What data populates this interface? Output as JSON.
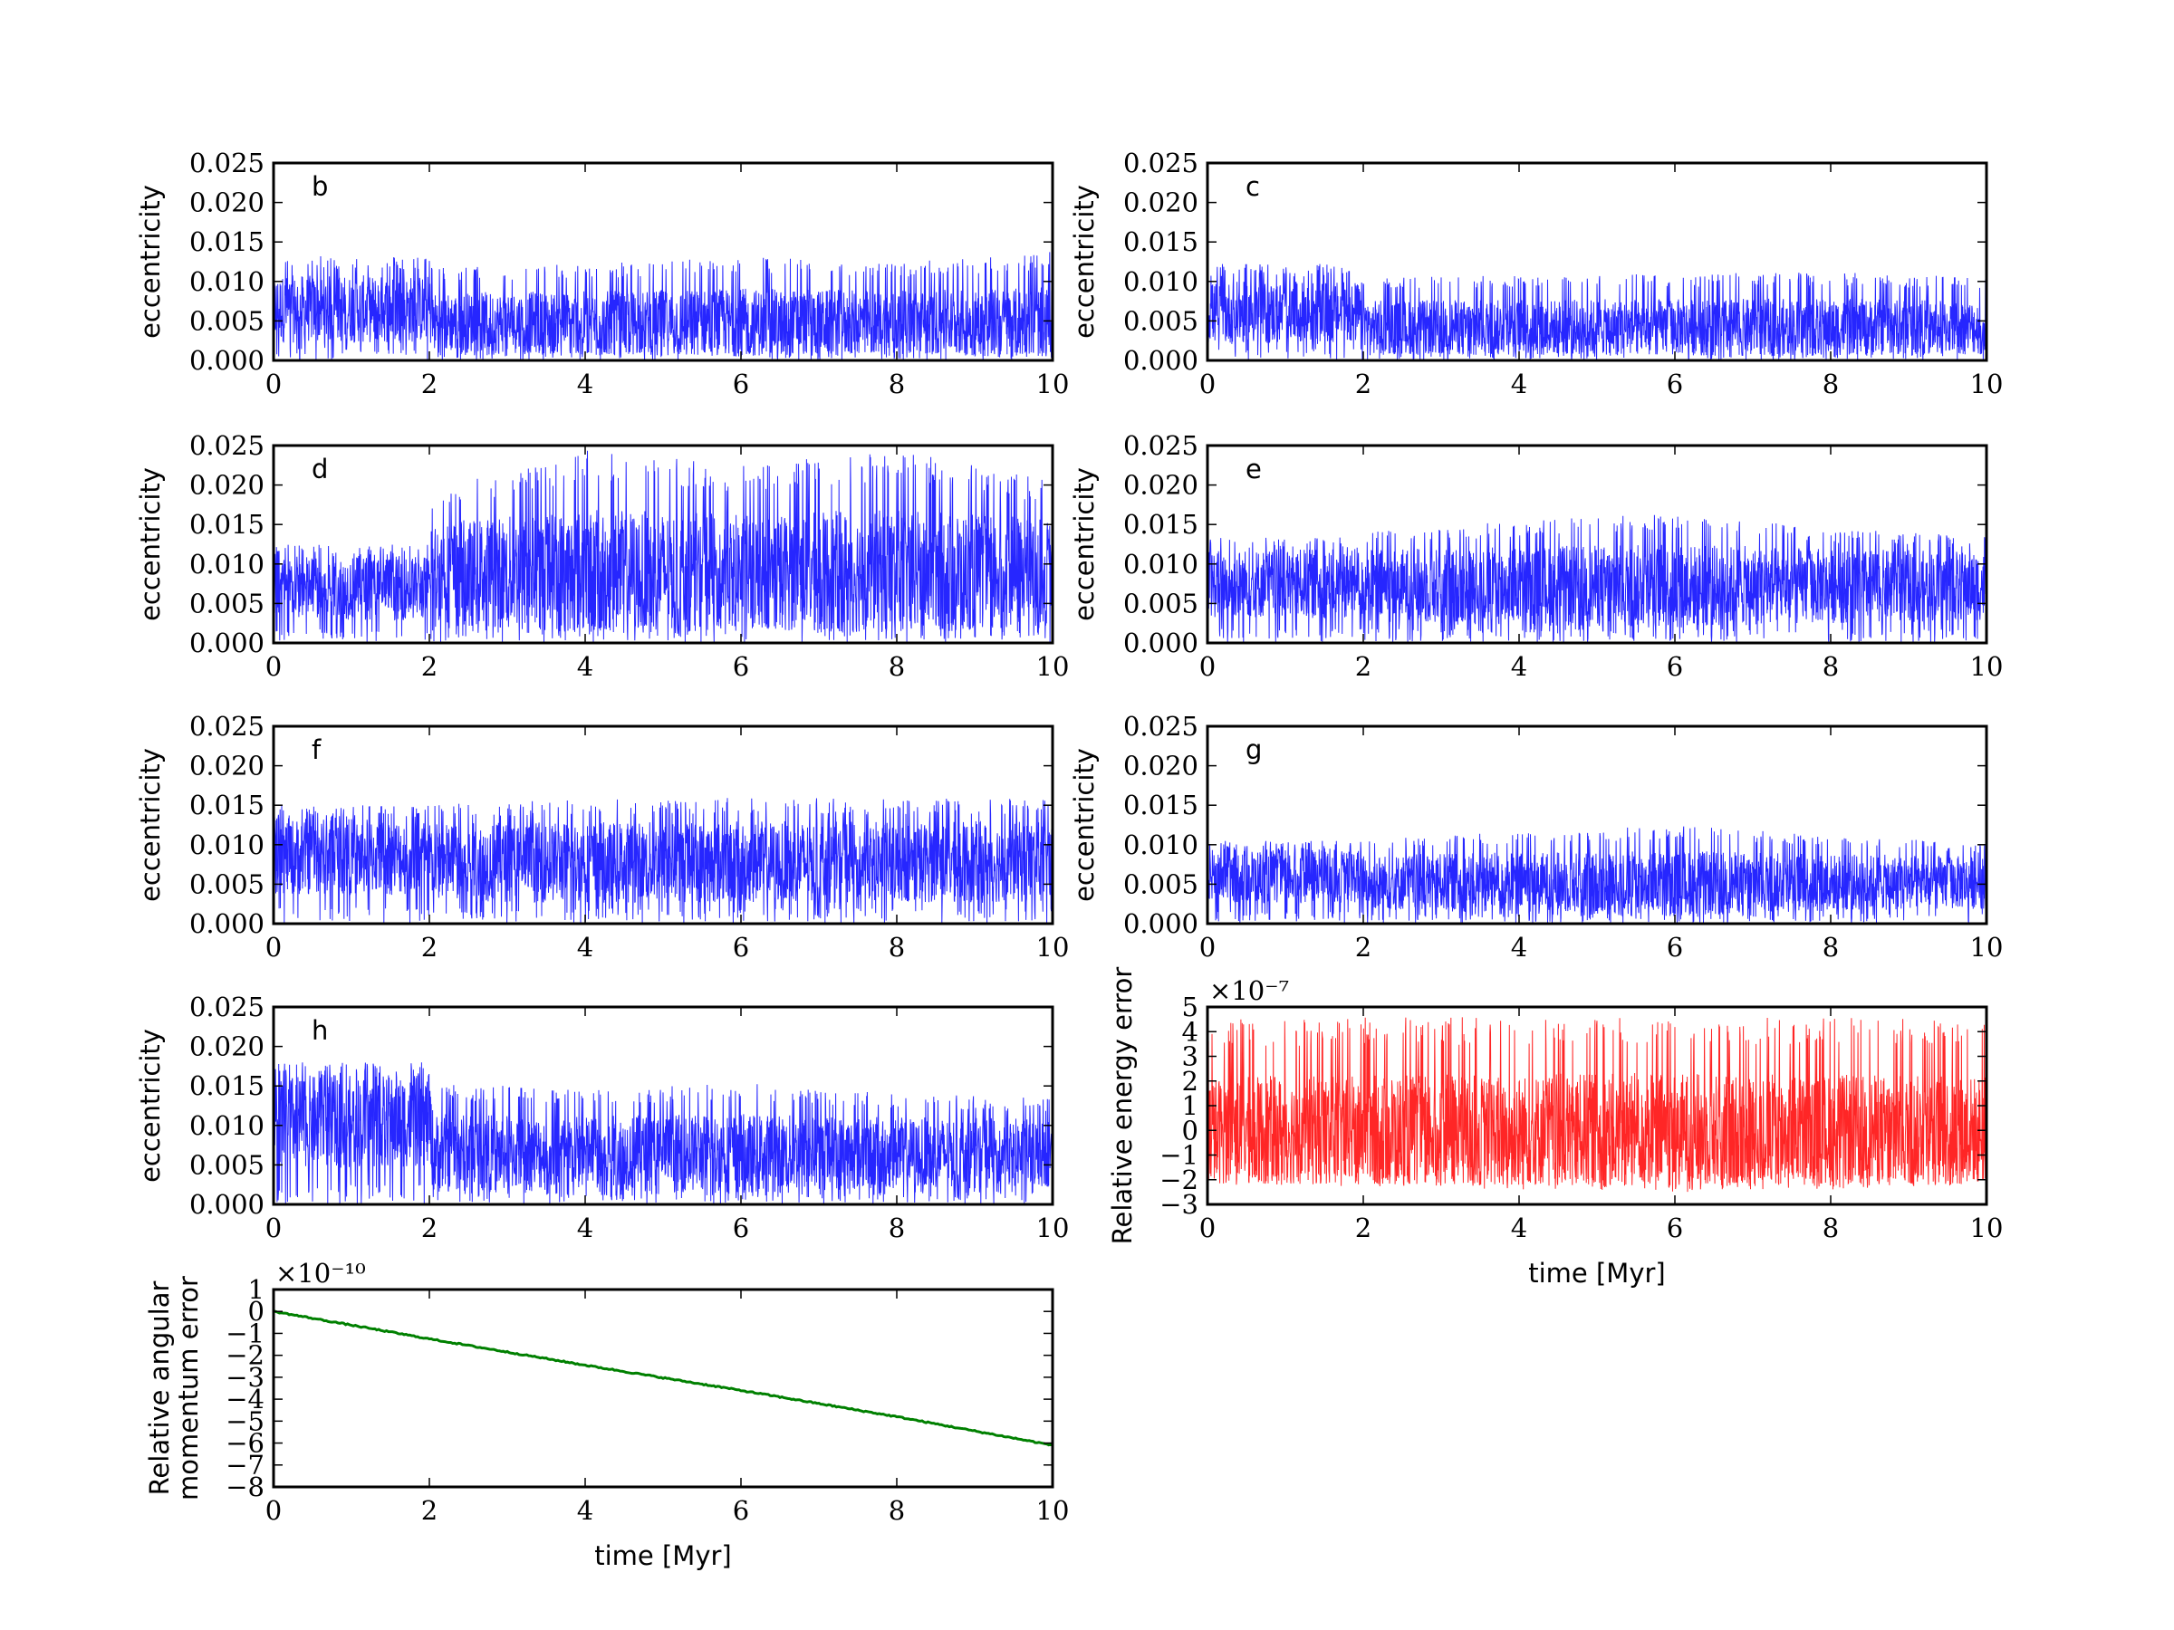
{
  "chart_data": [
    {
      "type": "line",
      "panel": "b",
      "label": "b",
      "xlabel": "",
      "ylabel": "eccentricity",
      "xlim": [
        0,
        10
      ],
      "ylim": [
        0,
        0.025
      ],
      "xticks": [
        "0",
        "2",
        "4",
        "6",
        "8",
        "10"
      ],
      "yticks": [
        "0.000",
        "0.005",
        "0.010",
        "0.015",
        "0.020",
        "0.025"
      ],
      "color": "#0000ff",
      "series": [
        {
          "name": "b",
          "x": [
            0,
            2,
            2.05,
            4,
            6,
            8,
            10
          ],
          "mean": [
            0.0065,
            0.0065,
            0.0048,
            0.0048,
            0.0048,
            0.0048,
            0.0048
          ],
          "low": [
            0.0,
            0.0,
            0.0,
            0.0,
            0.0,
            0.0,
            0.0
          ],
          "high": [
            0.0132,
            0.0132,
            0.0118,
            0.0122,
            0.0133,
            0.0124,
            0.0138
          ]
        }
      ]
    },
    {
      "type": "line",
      "panel": "c",
      "label": "c",
      "xlabel": "",
      "ylabel": "eccentricity",
      "xlim": [
        0,
        10
      ],
      "ylim": [
        0,
        0.025
      ],
      "xticks": [
        "0",
        "2",
        "4",
        "6",
        "8",
        "10"
      ],
      "yticks": [
        "0.000",
        "0.005",
        "0.010",
        "0.015",
        "0.020",
        "0.025"
      ],
      "color": "#0000ff",
      "series": [
        {
          "name": "c",
          "x": [
            0,
            2,
            2.05,
            4,
            6,
            8,
            10
          ],
          "mean": [
            0.006,
            0.006,
            0.0042,
            0.0042,
            0.0042,
            0.0042,
            0.0042
          ],
          "low": [
            0.0,
            0.0,
            0.0,
            0.0,
            0.0,
            0.0,
            0.0
          ],
          "high": [
            0.0122,
            0.0122,
            0.0105,
            0.0108,
            0.011,
            0.0112,
            0.0105
          ]
        }
      ]
    },
    {
      "type": "line",
      "panel": "d",
      "label": "d",
      "xlabel": "",
      "ylabel": "eccentricity",
      "xlim": [
        0,
        10
      ],
      "ylim": [
        0,
        0.025
      ],
      "xticks": [
        "0",
        "2",
        "4",
        "6",
        "8",
        "10"
      ],
      "yticks": [
        "0.000",
        "0.005",
        "0.010",
        "0.015",
        "0.020",
        "0.025"
      ],
      "color": "#0000ff",
      "series": [
        {
          "name": "d",
          "x": [
            0,
            2,
            2.05,
            4,
            6,
            8,
            10
          ],
          "mean": [
            0.007,
            0.007,
            0.009,
            0.009,
            0.009,
            0.009,
            0.009
          ],
          "low": [
            0.0,
            0.0,
            0.0,
            0.0,
            0.0,
            0.0,
            0.0
          ],
          "high": [
            0.0125,
            0.0125,
            0.0195,
            0.0245,
            0.0225,
            0.0245,
            0.0205
          ]
        }
      ]
    },
    {
      "type": "line",
      "panel": "e",
      "label": "e",
      "xlabel": "",
      "ylabel": "eccentricity",
      "xlim": [
        0,
        10
      ],
      "ylim": [
        0,
        0.025
      ],
      "xticks": [
        "0",
        "2",
        "4",
        "6",
        "8",
        "10"
      ],
      "yticks": [
        "0.000",
        "0.005",
        "0.010",
        "0.015",
        "0.020",
        "0.025"
      ],
      "color": "#0000ff",
      "series": [
        {
          "name": "e",
          "x": [
            0,
            2,
            2.05,
            4,
            6,
            8,
            10
          ],
          "mean": [
            0.0075,
            0.0075,
            0.0072,
            0.0072,
            0.0072,
            0.0072,
            0.0072
          ],
          "low": [
            0.0,
            0.0,
            0.0,
            0.0,
            0.0,
            0.0,
            0.0
          ],
          "high": [
            0.0135,
            0.0135,
            0.0145,
            0.0155,
            0.0165,
            0.0145,
            0.0135
          ]
        }
      ]
    },
    {
      "type": "line",
      "panel": "f",
      "label": "f",
      "xlabel": "",
      "ylabel": "eccentricity",
      "xlim": [
        0,
        10
      ],
      "ylim": [
        0,
        0.025
      ],
      "xticks": [
        "0",
        "2",
        "4",
        "6",
        "8",
        "10"
      ],
      "yticks": [
        "0.000",
        "0.005",
        "0.010",
        "0.015",
        "0.020",
        "0.025"
      ],
      "color": "#0000ff",
      "series": [
        {
          "name": "f",
          "x": [
            0,
            2,
            2.05,
            4,
            6,
            8,
            10
          ],
          "mean": [
            0.0085,
            0.0085,
            0.0078,
            0.0078,
            0.0078,
            0.0078,
            0.0078
          ],
          "low": [
            0.0,
            0.0,
            0.0,
            0.0,
            0.0,
            0.0,
            0.0
          ],
          "high": [
            0.015,
            0.015,
            0.0152,
            0.0158,
            0.016,
            0.0158,
            0.016
          ]
        }
      ]
    },
    {
      "type": "line",
      "panel": "g",
      "label": "g",
      "xlabel": "",
      "ylabel": "eccentricity",
      "xlim": [
        0,
        10
      ],
      "ylim": [
        0,
        0.025
      ],
      "xticks": [
        "0",
        "2",
        "4",
        "6",
        "8",
        "10"
      ],
      "yticks": [
        "0.000",
        "0.005",
        "0.010",
        "0.015",
        "0.020",
        "0.025"
      ],
      "color": "#0000ff",
      "series": [
        {
          "name": "g",
          "x": [
            0,
            2,
            2.05,
            4,
            6,
            8,
            10
          ],
          "mean": [
            0.006,
            0.006,
            0.0052,
            0.0052,
            0.0052,
            0.0052,
            0.0052
          ],
          "low": [
            0.0,
            0.0,
            0.0,
            0.0,
            0.0,
            0.0,
            0.0
          ],
          "high": [
            0.0105,
            0.0105,
            0.0108,
            0.0118,
            0.0125,
            0.0112,
            0.0102
          ]
        }
      ]
    },
    {
      "type": "line",
      "panel": "h",
      "label": "h",
      "xlabel": "",
      "ylabel": "eccentricity",
      "xlim": [
        0,
        10
      ],
      "ylim": [
        0,
        0.025
      ],
      "xticks": [
        "0",
        "2",
        "4",
        "6",
        "8",
        "10"
      ],
      "yticks": [
        "0.000",
        "0.005",
        "0.010",
        "0.015",
        "0.020",
        "0.025"
      ],
      "color": "#0000ff",
      "series": [
        {
          "name": "h",
          "x": [
            0,
            2,
            2.05,
            4,
            6,
            8,
            10
          ],
          "mean": [
            0.0105,
            0.0105,
            0.0065,
            0.0065,
            0.0065,
            0.0065,
            0.0065
          ],
          "low": [
            0.0,
            0.0,
            0.0,
            0.0,
            0.0,
            0.0,
            0.0
          ],
          "high": [
            0.018,
            0.018,
            0.0155,
            0.0145,
            0.0155,
            0.014,
            0.0135
          ]
        }
      ]
    },
    {
      "type": "line",
      "panel": "energy",
      "label": "",
      "xlabel": "time [Myr]",
      "ylabel": "Relative energy error",
      "xlim": [
        0,
        10
      ],
      "ylim": [
        -3,
        5
      ],
      "scale_exponent": "×10⁻⁷",
      "xticks": [
        "0",
        "2",
        "4",
        "6",
        "8",
        "10"
      ],
      "yticks": [
        "−3",
        "−2",
        "−1",
        "0",
        "1",
        "2",
        "3",
        "4",
        "5"
      ],
      "color": "#ff0000",
      "series": [
        {
          "name": "Relative energy error",
          "x": [
            0,
            2,
            4,
            6,
            8,
            10
          ],
          "mean": [
            0,
            0,
            0,
            0,
            0,
            0
          ],
          "low": [
            -2.2,
            -2.3,
            -2.4,
            -2.5,
            -2.4,
            -2.3
          ],
          "high": [
            4.5,
            4.6,
            4.6,
            4.7,
            4.6,
            4.5
          ]
        }
      ]
    },
    {
      "type": "line",
      "panel": "angmom",
      "label": "",
      "xlabel": "time [Myr]",
      "ylabel": [
        "Relative angular",
        "momentum error"
      ],
      "xlim": [
        0,
        10
      ],
      "ylim": [
        -8,
        1
      ],
      "scale_exponent": "×10⁻¹⁰",
      "xticks": [
        "0",
        "2",
        "4",
        "6",
        "8",
        "10"
      ],
      "yticks": [
        "−8",
        "−7",
        "−6",
        "−5",
        "−4",
        "−3",
        "−2",
        "−1",
        "0",
        "1"
      ],
      "color": "#008000",
      "series": [
        {
          "name": "Relative angular momentum error",
          "x": [
            0,
            2,
            4,
            6,
            8,
            10
          ],
          "y": [
            0.0,
            -1.25,
            -2.45,
            -3.6,
            -4.8,
            -6.1
          ]
        }
      ]
    }
  ]
}
